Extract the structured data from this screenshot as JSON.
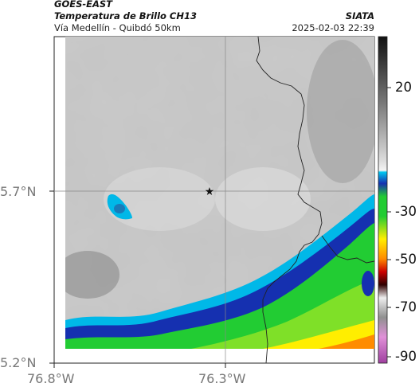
{
  "header": {
    "agency": "GOES-EAST",
    "title": "Temperatura de Brillo CH13",
    "subtitle": "Vía Medellín - Quibdó 50km",
    "organization": "SIATA",
    "timestamp": "2025-02-03 22:39"
  },
  "map": {
    "lat_ticks": [
      "5.7°N",
      "5.2°N"
    ],
    "lon_ticks": [
      "76.8°W",
      "76.3°W"
    ],
    "marker_icon": "star-icon"
  },
  "colorbar": {
    "ticks": [
      "20",
      "-30",
      "-50",
      "-70",
      "-90"
    ],
    "colors": {
      "very_cold": "#c050b0",
      "cold_red": "#cc0000",
      "orange": "#ff8c00",
      "yellow": "#ffee00",
      "green": "#22cc33",
      "blue": "#1530b0",
      "cyan": "#00b8e8",
      "gray_warm": "#2a2a2a"
    }
  }
}
